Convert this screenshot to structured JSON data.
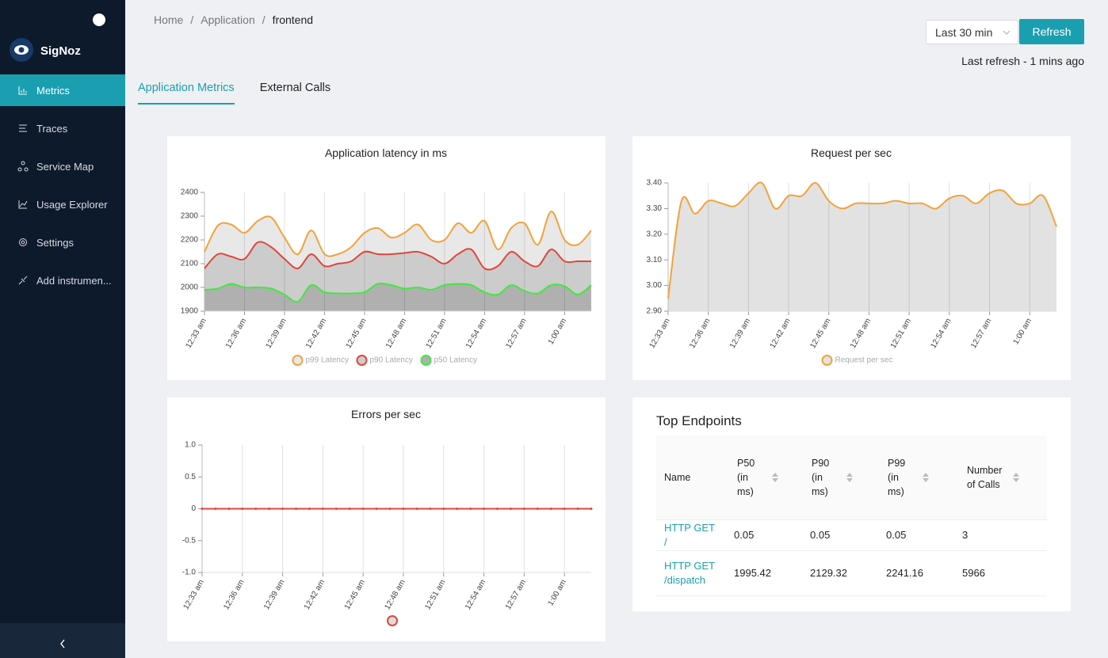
{
  "sidebar": {
    "brand": "SigNoz",
    "nav": [
      "Metrics",
      "Traces",
      "Service Map",
      "Usage Explorer",
      "Settings",
      "Add instrumen..."
    ],
    "active": 0
  },
  "breadcrumb": [
    "Home",
    "Application",
    "frontend"
  ],
  "time_range": "Last 30 min",
  "refresh": "Refresh",
  "last_refresh": "Last refresh - 1 mins ago",
  "tabs": [
    "Application Metrics",
    "External Calls"
  ],
  "active_tab": 0,
  "chart_data": [
    {
      "type": "line",
      "title": "Application latency in ms",
      "categories": [
        "12:33 am",
        null,
        null,
        "12:36 am",
        null,
        null,
        "12:39 am",
        null,
        null,
        "12:42 am",
        null,
        null,
        "12:45 am",
        null,
        null,
        "12:48 am",
        null,
        null,
        "12:51 am",
        null,
        null,
        "12:54 am",
        null,
        null,
        "12:57 am",
        null,
        null,
        "1:00 am",
        null,
        null
      ],
      "ylim": [
        1900,
        2400
      ],
      "yticks": [
        1900,
        2000,
        2100,
        2200,
        2300,
        2400
      ],
      "grid": true,
      "series": [
        {
          "name": "p99 Latency",
          "color": "#f2a33a",
          "area_color": "#e8e8e8",
          "values": [
            2150,
            2260,
            2265,
            2230,
            2280,
            2295,
            2210,
            2140,
            2240,
            2140,
            2140,
            2170,
            2230,
            2250,
            2210,
            2230,
            2265,
            2200,
            2200,
            2270,
            2230,
            2280,
            2160,
            2250,
            2270,
            2180,
            2320,
            2200,
            2180,
            2240
          ]
        },
        {
          "name": "p90 Latency",
          "color": "#e0463a",
          "area_color": "#cccccc",
          "values": [
            2080,
            2140,
            2130,
            2120,
            2190,
            2170,
            2120,
            2080,
            2140,
            2090,
            2100,
            2110,
            2150,
            2140,
            2140,
            2145,
            2150,
            2130,
            2100,
            2140,
            2160,
            2080,
            2090,
            2150,
            2110,
            2090,
            2160,
            2110,
            2110,
            2110
          ]
        },
        {
          "name": "p50 Latency",
          "color": "#3fe93f",
          "area_color": "#b0b0b0",
          "values": [
            1990,
            1995,
            2015,
            2000,
            2000,
            1995,
            1970,
            1940,
            2010,
            1980,
            1975,
            1975,
            1980,
            2015,
            2010,
            1995,
            2000,
            1990,
            2010,
            2015,
            2010,
            1980,
            1970,
            2010,
            1985,
            1975,
            2010,
            2005,
            1970,
            2010
          ]
        }
      ]
    },
    {
      "type": "line",
      "title": "Request per sec",
      "categories": [
        "12:33 am",
        null,
        null,
        "12:36 am",
        null,
        null,
        "12:39 am",
        null,
        null,
        "12:42 am",
        null,
        null,
        "12:45 am",
        null,
        null,
        "12:48 am",
        null,
        null,
        "12:51 am",
        null,
        null,
        "12:54 am",
        null,
        null,
        "12:57 am",
        null,
        null,
        "1:00 am",
        null,
        null
      ],
      "ylim": [
        2.9,
        3.4
      ],
      "yticks": [
        {
          "value": 2.9,
          "label": "2.90"
        },
        {
          "value": 3.0,
          "label": "3.00"
        },
        {
          "value": 3.1,
          "label": "3.10"
        },
        {
          "value": 3.2,
          "label": "3.20"
        },
        {
          "value": 3.3,
          "label": "3.30"
        },
        {
          "value": 3.4,
          "label": "3.40"
        }
      ],
      "grid": true,
      "series": [
        {
          "name": "Request per sec",
          "color": "#f2a33a",
          "area_color": "#e2e2e2",
          "values": [
            2.95,
            3.33,
            3.28,
            3.33,
            3.32,
            3.31,
            3.36,
            3.4,
            3.3,
            3.35,
            3.35,
            3.4,
            3.33,
            3.3,
            3.32,
            3.32,
            3.32,
            3.33,
            3.32,
            3.32,
            3.3,
            3.34,
            3.35,
            3.32,
            3.36,
            3.37,
            3.32,
            3.32,
            3.35,
            3.23
          ]
        }
      ]
    },
    {
      "type": "line",
      "title": "Errors per sec",
      "categories": [
        "12:33 am",
        null,
        null,
        "12:36 am",
        null,
        null,
        "12:39 am",
        null,
        null,
        "12:42 am",
        null,
        null,
        "12:45 am",
        null,
        null,
        "12:48 am",
        null,
        null,
        "12:51 am",
        null,
        null,
        "12:54 am",
        null,
        null,
        "12:57 am",
        null,
        null,
        "1:00 am",
        null,
        null
      ],
      "ylim": [
        -1,
        1
      ],
      "yticks": [
        {
          "value": -1,
          "label": "-1.0"
        },
        -0.5,
        0,
        0.5,
        {
          "value": 1,
          "label": "1.0"
        }
      ],
      "grid": true,
      "markers": true,
      "series": [
        {
          "color": "#e0463a",
          "legend_fill": "#dddddd",
          "values": [
            0,
            0,
            0,
            0,
            0,
            0,
            0,
            0,
            0,
            0,
            0,
            0,
            0,
            0,
            0,
            0,
            0,
            0,
            0,
            0,
            0,
            0,
            0,
            0,
            0,
            0,
            0,
            0,
            0,
            0
          ]
        }
      ]
    }
  ],
  "table": {
    "title": "Top Endpoints",
    "columns": [
      "Name",
      "P50 (in ms)",
      "P90 (in ms)",
      "P99 (in ms)",
      "Number of Calls"
    ],
    "rows": [
      [
        "HTTP GET /",
        0.05,
        0.05,
        0.05,
        3
      ],
      [
        "HTTP GET /dispatch",
        1995.42,
        2129.32,
        2241.16,
        5966
      ]
    ]
  }
}
